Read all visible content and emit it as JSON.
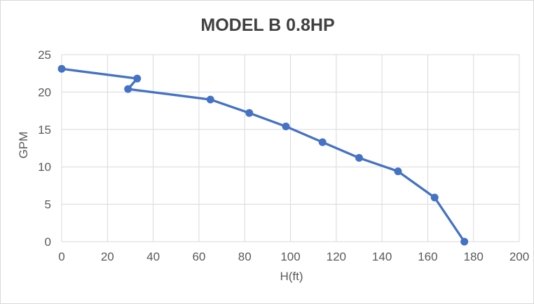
{
  "chart_title": "MODEL B 0.8HP",
  "chart_data": {
    "type": "line",
    "title": "MODEL B 0.8HP",
    "xlabel": "H(ft)",
    "ylabel": "GPM",
    "xlim": [
      0,
      200
    ],
    "ylim": [
      0,
      25
    ],
    "x_ticks": [
      0,
      20,
      40,
      60,
      80,
      100,
      120,
      140,
      160,
      180,
      200
    ],
    "y_ticks": [
      0,
      5,
      10,
      15,
      20,
      25
    ],
    "grid": true,
    "legend": false,
    "series": [
      {
        "name": "MODEL B 0.8HP",
        "points": [
          [
            0,
            23.1
          ],
          [
            33,
            21.8
          ],
          [
            29,
            20.4
          ],
          [
            65,
            19.0
          ],
          [
            82,
            17.2
          ],
          [
            98,
            15.4
          ],
          [
            114,
            13.3
          ],
          [
            130,
            11.2
          ],
          [
            147,
            9.4
          ],
          [
            163,
            5.9
          ],
          [
            176,
            0
          ]
        ]
      }
    ],
    "colors": {
      "line": "#4472C4",
      "marker": "#4472C4",
      "grid": "#D9D9D9",
      "tick_label": "#595959",
      "axis_title": "#595959",
      "title": "#404040",
      "background": "#FFFFFF",
      "border": "#D9D9D9"
    }
  }
}
